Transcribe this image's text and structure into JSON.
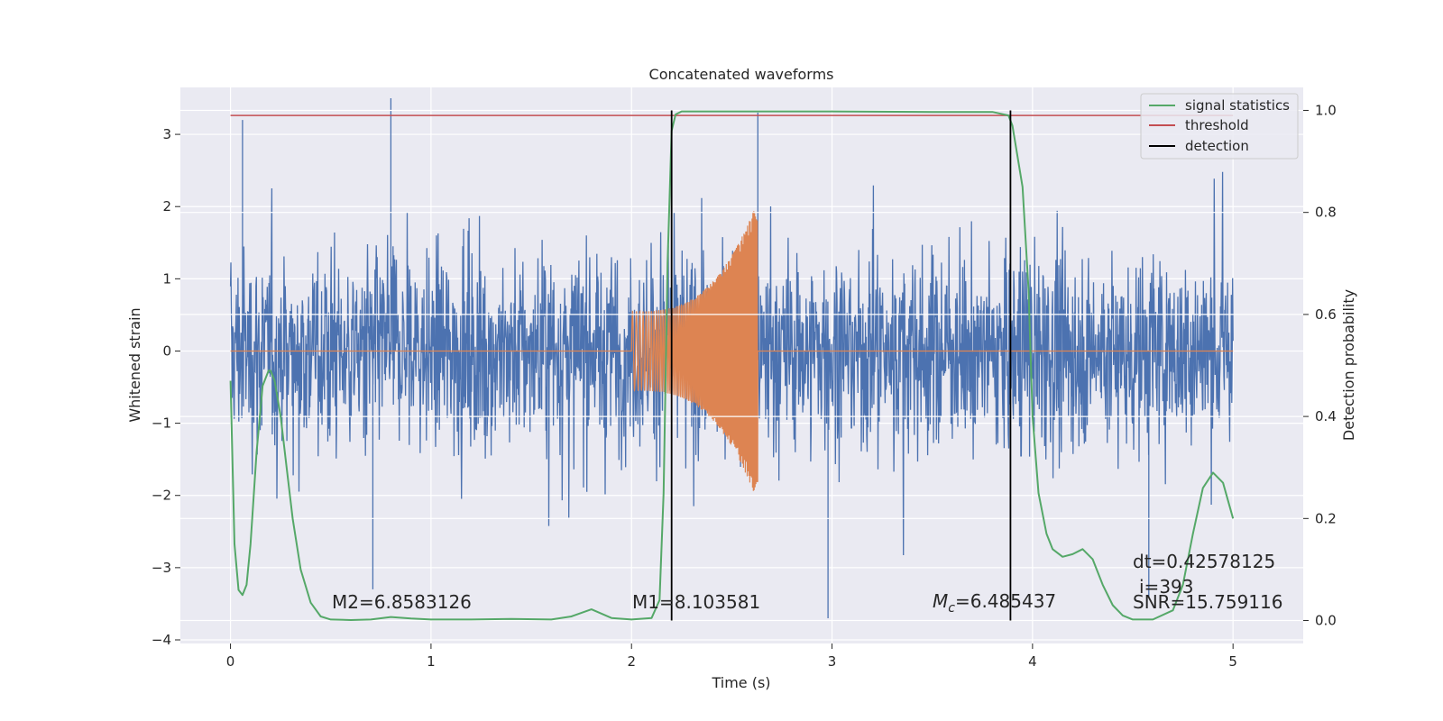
{
  "chart_data": {
    "type": "line",
    "title": "Concatenated waveforms",
    "xlabel": "Time (s)",
    "ylabel": "Whitened strain",
    "ylabel_right": "Detection probability",
    "xlim": [
      -0.25,
      5.35
    ],
    "ylim": [
      -4.05,
      3.65
    ],
    "ylim_right": [
      -0.045,
      1.045
    ],
    "x_ticks": [
      0,
      1,
      2,
      3,
      4,
      5
    ],
    "y_ticks": [
      -4,
      -3,
      -2,
      -1,
      0,
      1,
      2,
      3
    ],
    "y_ticks_right": [
      0.0,
      0.2,
      0.4,
      0.6,
      0.8,
      1.0
    ],
    "x_tick_labels": [
      "0",
      "1",
      "2",
      "3",
      "4",
      "5"
    ],
    "y_tick_labels": [
      "−4",
      "−3",
      "−2",
      "−1",
      "0",
      "1",
      "2",
      "3"
    ],
    "y_tick_labels_right": [
      "0.0",
      "0.2",
      "0.4",
      "0.6",
      "0.8",
      "1.0"
    ],
    "grid": true,
    "legend_position": "top-right",
    "colors": {
      "background": "#eaeaf2",
      "grid": "#ffffff",
      "noise": "#4c72b0",
      "injected_waveform": "#dd8452",
      "signal_statistics": "#55a868",
      "threshold": "#c44e52",
      "detection": "#000000"
    },
    "series": [
      {
        "role": "noise",
        "x_range": [
          0,
          5
        ],
        "envelope_typical": [
          -1.6,
          1.6
        ],
        "peaks": [
          [
            0.8,
            3.5
          ],
          [
            0.06,
            3.2
          ],
          [
            2.63,
            3.3
          ],
          [
            2.98,
            -3.7
          ],
          [
            4.58,
            -3.4
          ],
          [
            0.71,
            -3.3
          ]
        ]
      },
      {
        "role": "injected_waveform",
        "x_range": [
          2.0,
          2.63
        ],
        "amplitude_start": 0.55,
        "amplitude_end": 2.1
      },
      {
        "name": "signal statistics",
        "x": [
          0,
          0.02,
          0.04,
          0.06,
          0.08,
          0.1,
          0.13,
          0.16,
          0.19,
          0.2,
          0.22,
          0.25,
          0.28,
          0.31,
          0.35,
          0.4,
          0.45,
          0.5,
          0.6,
          0.7,
          0.8,
          0.9,
          1.0,
          1.2,
          1.4,
          1.6,
          1.7,
          1.8,
          1.9,
          2.0,
          2.1,
          2.14,
          2.16,
          2.18,
          2.2,
          2.22,
          2.25,
          2.3,
          2.5,
          3.0,
          3.5,
          3.8,
          3.88,
          3.9,
          3.95,
          3.98,
          4.0,
          4.03,
          4.07,
          4.1,
          4.15,
          4.2,
          4.25,
          4.3,
          4.35,
          4.4,
          4.45,
          4.5,
          4.6,
          4.7,
          4.75,
          4.8,
          4.85,
          4.9,
          4.95,
          5.0
        ],
        "values": [
          0.47,
          0.15,
          0.06,
          0.05,
          0.07,
          0.15,
          0.33,
          0.46,
          0.49,
          0.49,
          0.47,
          0.4,
          0.3,
          0.2,
          0.1,
          0.035,
          0.008,
          0.002,
          0.001,
          0.002,
          0.007,
          0.004,
          0.002,
          0.002,
          0.003,
          0.002,
          0.008,
          0.022,
          0.005,
          0.002,
          0.005,
          0.04,
          0.25,
          0.7,
          0.96,
          0.992,
          0.998,
          0.998,
          0.998,
          0.998,
          0.997,
          0.997,
          0.99,
          0.97,
          0.85,
          0.65,
          0.4,
          0.25,
          0.17,
          0.14,
          0.125,
          0.13,
          0.14,
          0.12,
          0.07,
          0.03,
          0.01,
          0.002,
          0.002,
          0.02,
          0.07,
          0.17,
          0.26,
          0.29,
          0.27,
          0.2
        ]
      },
      {
        "name": "threshold",
        "x": [
          0,
          5
        ],
        "values": [
          0.99,
          0.99
        ]
      },
      {
        "name": "detection",
        "x_positions": [
          2.2,
          3.89
        ],
        "range": [
          0.0,
          1.0
        ]
      }
    ],
    "legend": [
      "signal statistics",
      "threshold",
      "detection"
    ],
    "annotations": {
      "m2": "M2=6.8583126",
      "m1": "M1=8.103581",
      "mc_symbol": "M",
      "mc_sub": "c",
      "mc_value": "=6.485437",
      "dt": "dt=0.42578125",
      "i": "i=393",
      "snr": "SNR=15.759116"
    }
  }
}
